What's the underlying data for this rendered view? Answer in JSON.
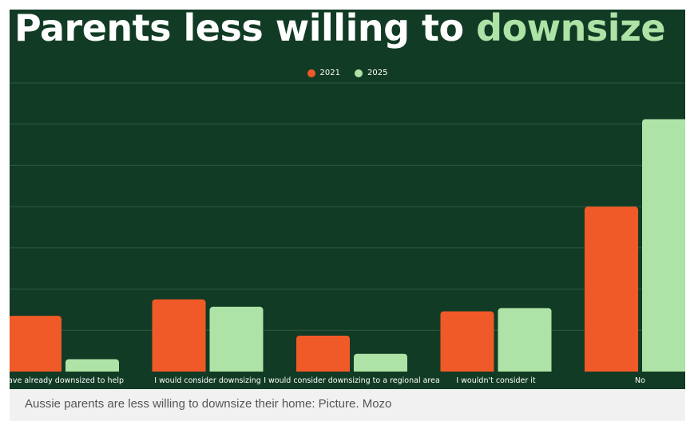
{
  "chart_data": {
    "type": "bar",
    "title_main": "Parents less willing to",
    "title_accent": "downsize",
    "categories": [
      "have already downsized to help",
      "I would consider downsizing",
      "I would consider downsizing to a regional area",
      "I wouldn't consider it",
      "No"
    ],
    "series": [
      {
        "name": "2021",
        "values": [
          13.5,
          17.5,
          8.7,
          14.6,
          40.0
        ]
      },
      {
        "name": "2025",
        "values": [
          3.0,
          15.7,
          4.3,
          15.4,
          61.2
        ]
      }
    ],
    "ylim": [
      0,
      70
    ],
    "grid": true,
    "legend_position": "top-center",
    "colors": {
      "2021": "#f05a28",
      "2025": "#ade3a6",
      "background": "#123b25",
      "grid": "#2c5a40"
    }
  },
  "caption": "Aussie parents are less willing to downsize their home: Picture. Mozo"
}
